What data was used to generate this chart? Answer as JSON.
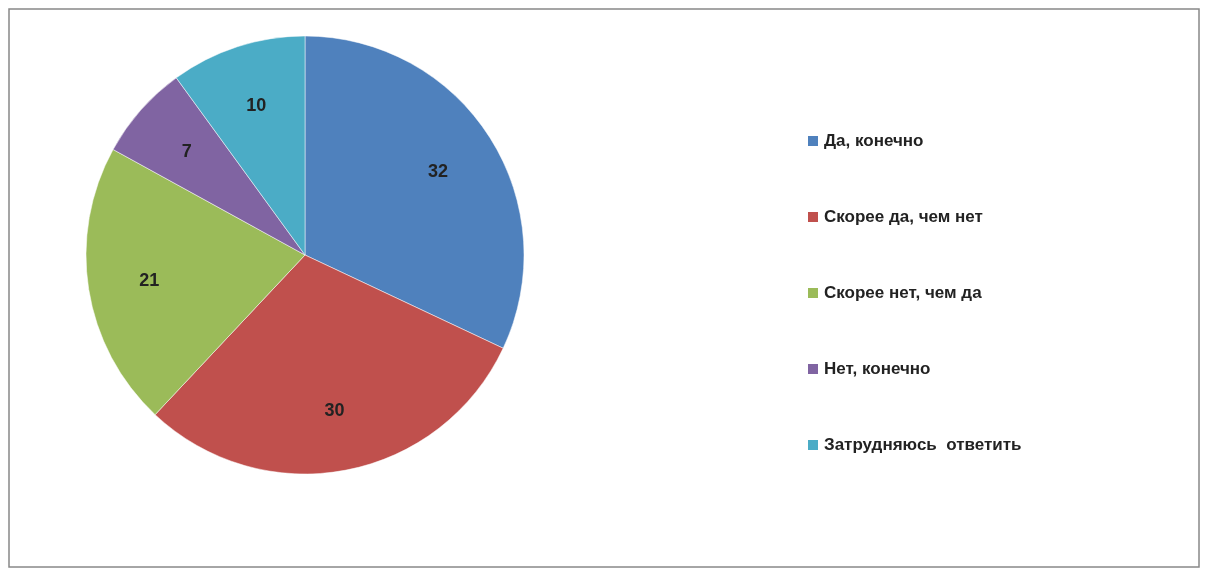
{
  "chart_data": {
    "type": "pie",
    "categories": [
      "Да, конечно",
      "Скорее да, чем нет",
      "Скорее нет, чем да",
      "Нет, конечно",
      "Затрудняюсь  ответить"
    ],
    "values": [
      32,
      30,
      21,
      7,
      10
    ],
    "colors": [
      "#4f81bd",
      "#c0504d",
      "#9bbb59",
      "#8064a2",
      "#4bacc6"
    ],
    "data_labels": true,
    "legend": "right"
  }
}
